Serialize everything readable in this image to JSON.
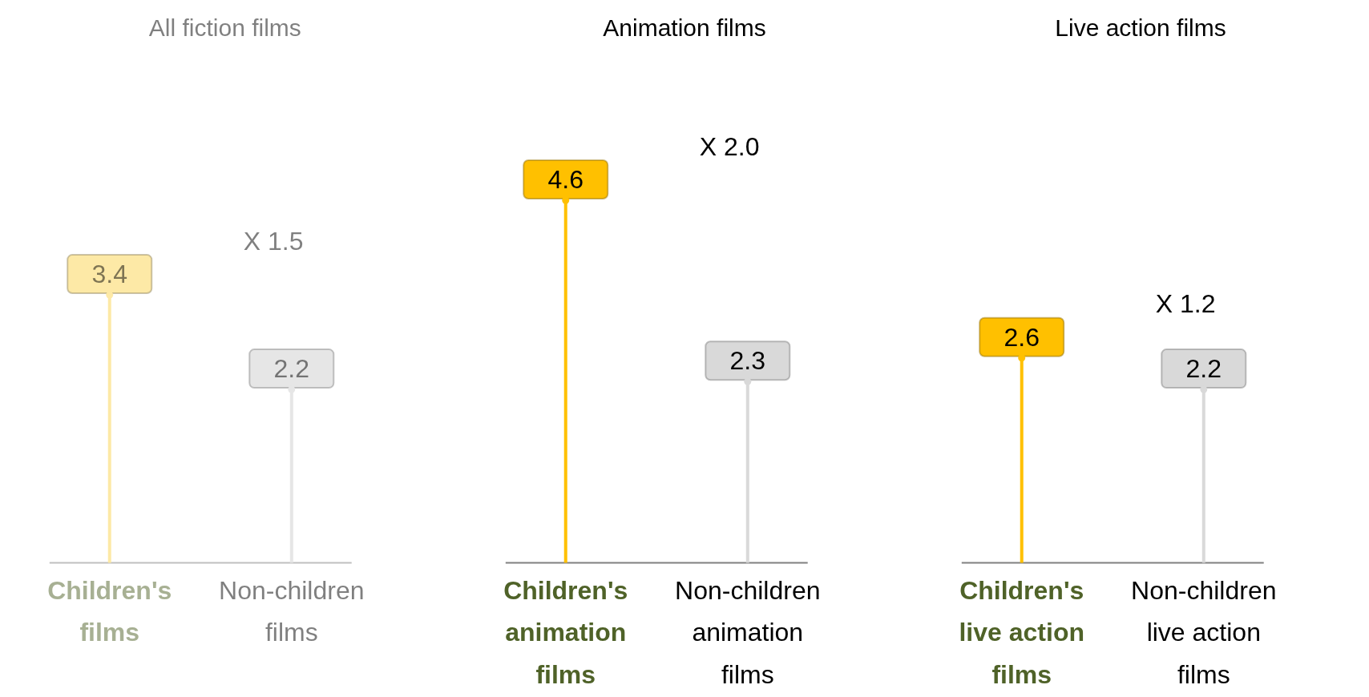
{
  "chart_data": [
    {
      "type": "lollipop",
      "title": "All  fiction films",
      "categories": [
        "Children's films",
        "Non-children films"
      ],
      "values": [
        3.4,
        2.2
      ],
      "colors": [
        "#fde9a6",
        "#e6e6e6"
      ],
      "data_labels": true,
      "annotations": [
        "X 1.5"
      ]
    },
    {
      "type": "lollipop",
      "title": "Animation films",
      "categories": [
        "Children's animation films",
        "Non-children animation films"
      ],
      "values": [
        4.6,
        2.3
      ],
      "colors": [
        "#ffc000",
        "#d9d9d9"
      ],
      "data_labels": true,
      "annotations": [
        "X 2.0"
      ]
    },
    {
      "type": "lollipop",
      "title": "Live action films",
      "categories": [
        "Children's live action films",
        "Non-children live action films"
      ],
      "values": [
        2.6,
        2.2
      ],
      "colors": [
        "#ffc000",
        "#d9d9d9"
      ],
      "data_labels": true,
      "annotations": [
        "X 1.2"
      ]
    }
  ]
}
